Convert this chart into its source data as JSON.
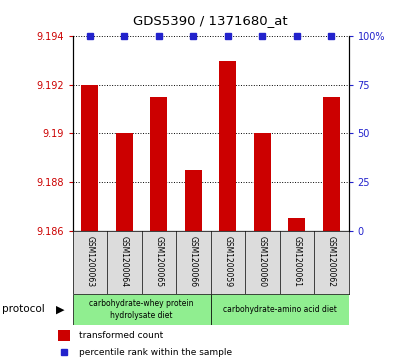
{
  "title": "GDS5390 / 1371680_at",
  "samples": [
    "GSM1200063",
    "GSM1200064",
    "GSM1200065",
    "GSM1200066",
    "GSM1200059",
    "GSM1200060",
    "GSM1200061",
    "GSM1200062"
  ],
  "red_values": [
    9.192,
    9.19,
    9.1915,
    9.1885,
    9.193,
    9.19,
    9.1865,
    9.1915
  ],
  "blue_values": [
    100,
    100,
    100,
    100,
    100,
    100,
    100,
    100
  ],
  "ylim_left": [
    9.186,
    9.194
  ],
  "ylim_right": [
    0,
    100
  ],
  "yticks_left": [
    9.186,
    9.188,
    9.19,
    9.192,
    9.194
  ],
  "yticks_right": [
    0,
    25,
    50,
    75,
    100
  ],
  "ytick_labels_left": [
    "9.186",
    "9.188",
    "9.19",
    "9.192",
    "9.194"
  ],
  "ytick_labels_right": [
    "0",
    "25",
    "50",
    "75",
    "100%"
  ],
  "bar_color": "#CC0000",
  "blue_marker_color": "#2222CC",
  "sample_bg": "#DCDCDC",
  "plot_bg": "#FFFFFF",
  "protocol1_label": "carbohydrate-whey protein\nhydrolysate diet",
  "protocol2_label": "carbohydrate-amino acid diet",
  "protocol_color": "#90EE90",
  "left_axis_color": "#CC0000",
  "right_axis_color": "#2222CC",
  "baseline": 9.186
}
